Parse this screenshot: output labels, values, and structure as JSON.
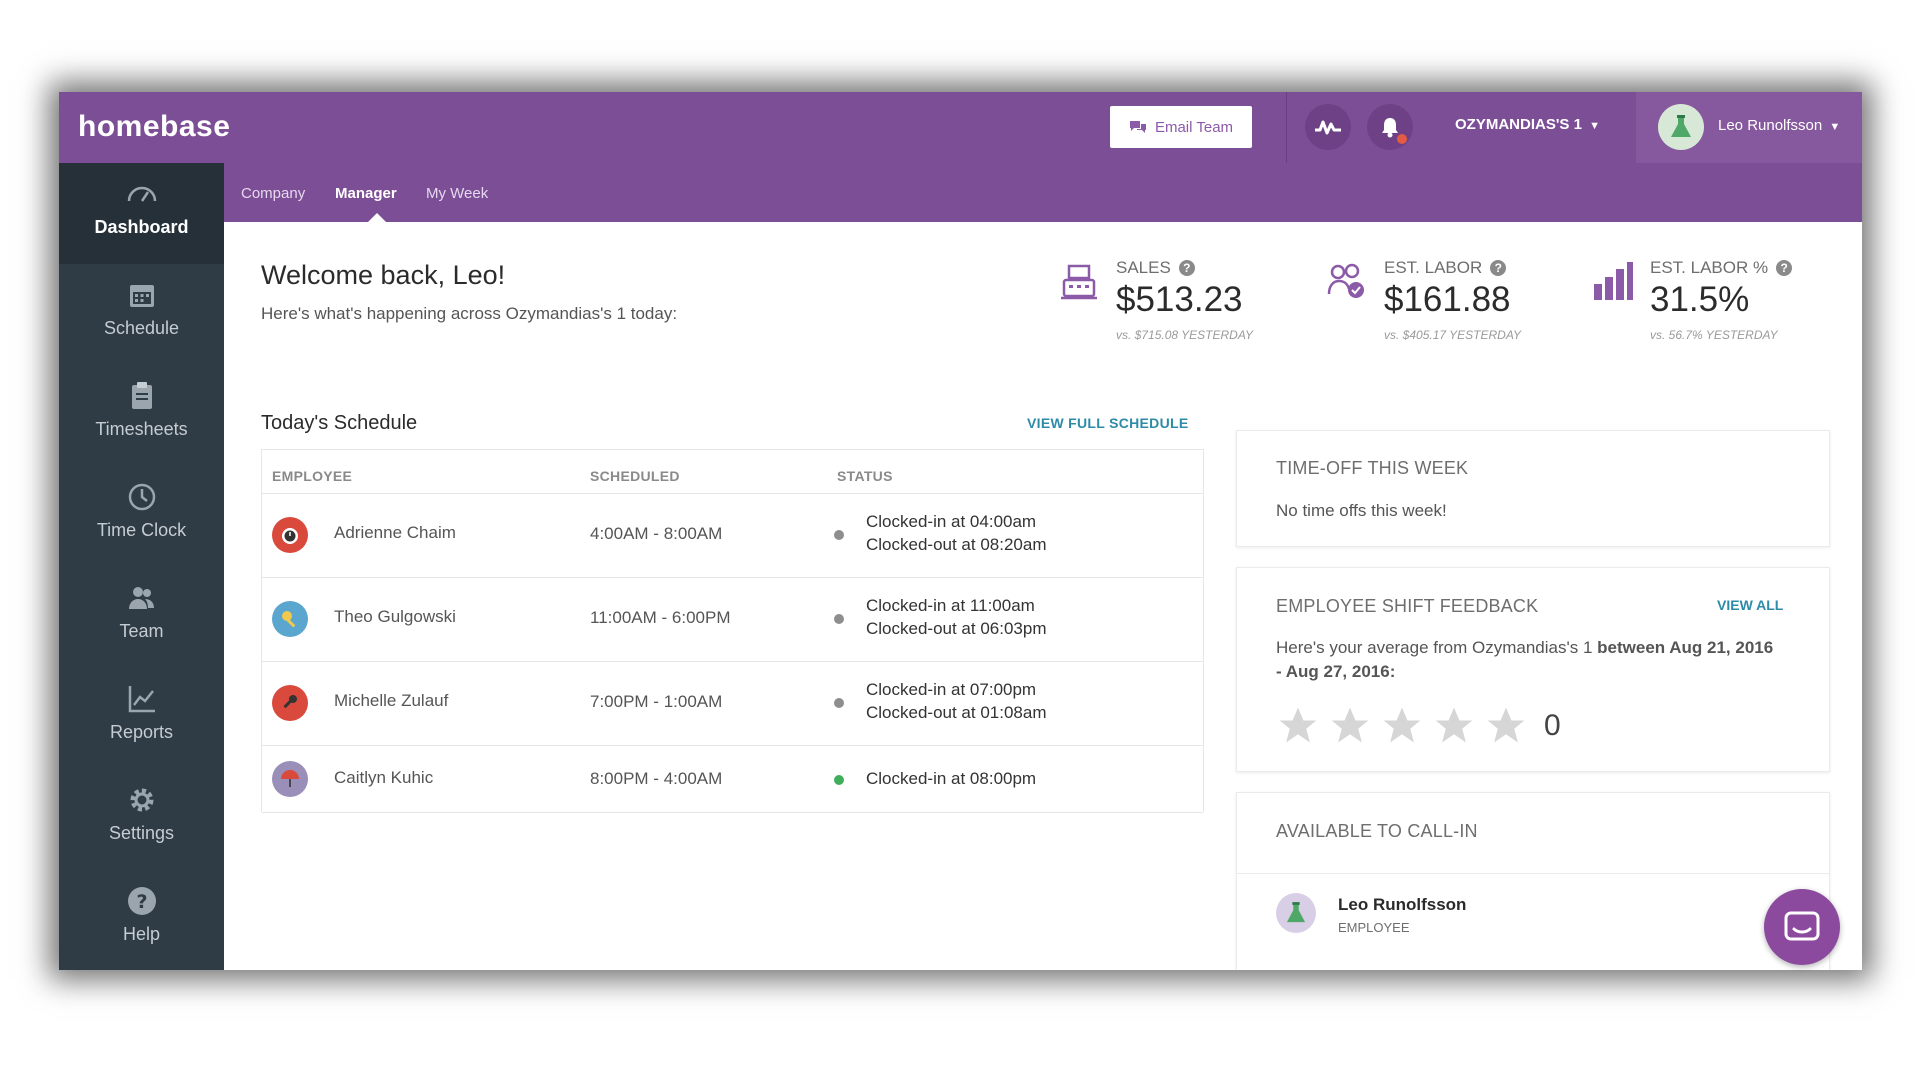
{
  "app": {
    "logo": "homebase"
  },
  "topbar": {
    "email_team_label": "Email Team",
    "location_label": "OZYMANDIAS'S 1",
    "user_name": "Leo Runolfsson"
  },
  "sidebar": {
    "items": [
      {
        "label": "Dashboard",
        "icon": "gauge-icon",
        "active": true
      },
      {
        "label": "Schedule",
        "icon": "calendar-icon"
      },
      {
        "label": "Timesheets",
        "icon": "clipboard-icon"
      },
      {
        "label": "Time Clock",
        "icon": "clock-icon"
      },
      {
        "label": "Team",
        "icon": "team-icon"
      },
      {
        "label": "Reports",
        "icon": "chart-icon"
      },
      {
        "label": "Settings",
        "icon": "gear-icon"
      },
      {
        "label": "Help",
        "icon": "help-icon"
      }
    ]
  },
  "subnav": {
    "tabs": [
      {
        "label": "Company"
      },
      {
        "label": "Manager",
        "active": true
      },
      {
        "label": "My Week"
      }
    ]
  },
  "welcome": {
    "title": "Welcome back, Leo!",
    "subtitle": "Here's what's happening across Ozymandias's 1 today:"
  },
  "kpis": [
    {
      "label": "SALES",
      "value": "$513.23",
      "compare": "vs. $715.08 YESTERDAY"
    },
    {
      "label": "EST. LABOR",
      "value": "$161.88",
      "compare": "vs. $405.17 YESTERDAY"
    },
    {
      "label": "EST. LABOR %",
      "value": "31.5%",
      "compare": "vs. 56.7% YESTERDAY"
    }
  ],
  "schedule": {
    "title": "Today's Schedule",
    "view_full_label": "VIEW FULL SCHEDULE",
    "columns": [
      "EMPLOYEE",
      "SCHEDULED",
      "STATUS"
    ],
    "rows": [
      {
        "name": "Adrienne Chaim",
        "time": "4:00AM - 8:00AM",
        "status_lines": [
          "Clocked-in at 04:00am",
          "Clocked-out at 08:20am"
        ],
        "dot_color": "#8e8e8e",
        "avatar_color": "#d94a3d"
      },
      {
        "name": "Theo Gulgowski",
        "time": "11:00AM - 6:00PM",
        "status_lines": [
          "Clocked-in at 11:00am",
          "Clocked-out at 06:03pm"
        ],
        "dot_color": "#8e8e8e",
        "avatar_color": "#5aa6cf"
      },
      {
        "name": "Michelle Zulauf",
        "time": "7:00PM - 1:00AM",
        "status_lines": [
          "Clocked-in at 07:00pm",
          "Clocked-out at 01:08am"
        ],
        "dot_color": "#8e8e8e",
        "avatar_color": "#d94a3d"
      },
      {
        "name": "Caitlyn Kuhic",
        "time": "8:00PM - 4:00AM",
        "status_lines": [
          "Clocked-in at 08:00pm"
        ],
        "dot_color": "#3fae5b",
        "avatar_color": "#9a8fb8"
      }
    ]
  },
  "time_off": {
    "title": "TIME-OFF THIS WEEK",
    "text": "No time offs this week!"
  },
  "feedback": {
    "title": "EMPLOYEE SHIFT FEEDBACK",
    "view_all_label": "VIEW ALL",
    "text_prefix": "Here's your average from Ozymandias's 1",
    "text_bold": "between Aug 21, 2016 - Aug 27, 2016:",
    "rating_count": "0",
    "stars": 5
  },
  "call_in": {
    "title": "AVAILABLE TO CALL-IN",
    "employee_name": "Leo Runolfsson",
    "employee_role": "EMPLOYEE"
  },
  "colors": {
    "brand": "#7c4e96",
    "sidebar": "#2f3b45",
    "link": "#2e8ba8"
  }
}
